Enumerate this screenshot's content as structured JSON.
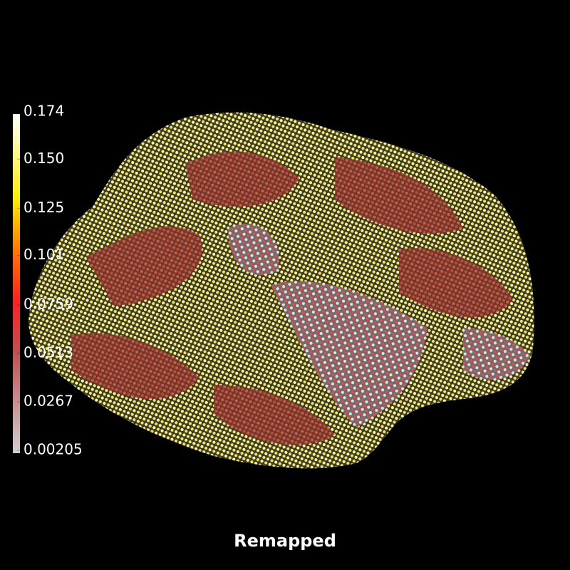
{
  "title": "Remapped",
  "colorbar": {
    "range": [
      0.00205,
      0.174
    ],
    "ticks": [
      0.174,
      {
        "value": 0.15,
        "label": "0.150"
      },
      0.125,
      0.101,
      0.0759,
      0.0513,
      0.0267,
      0.00205
    ]
  }
}
